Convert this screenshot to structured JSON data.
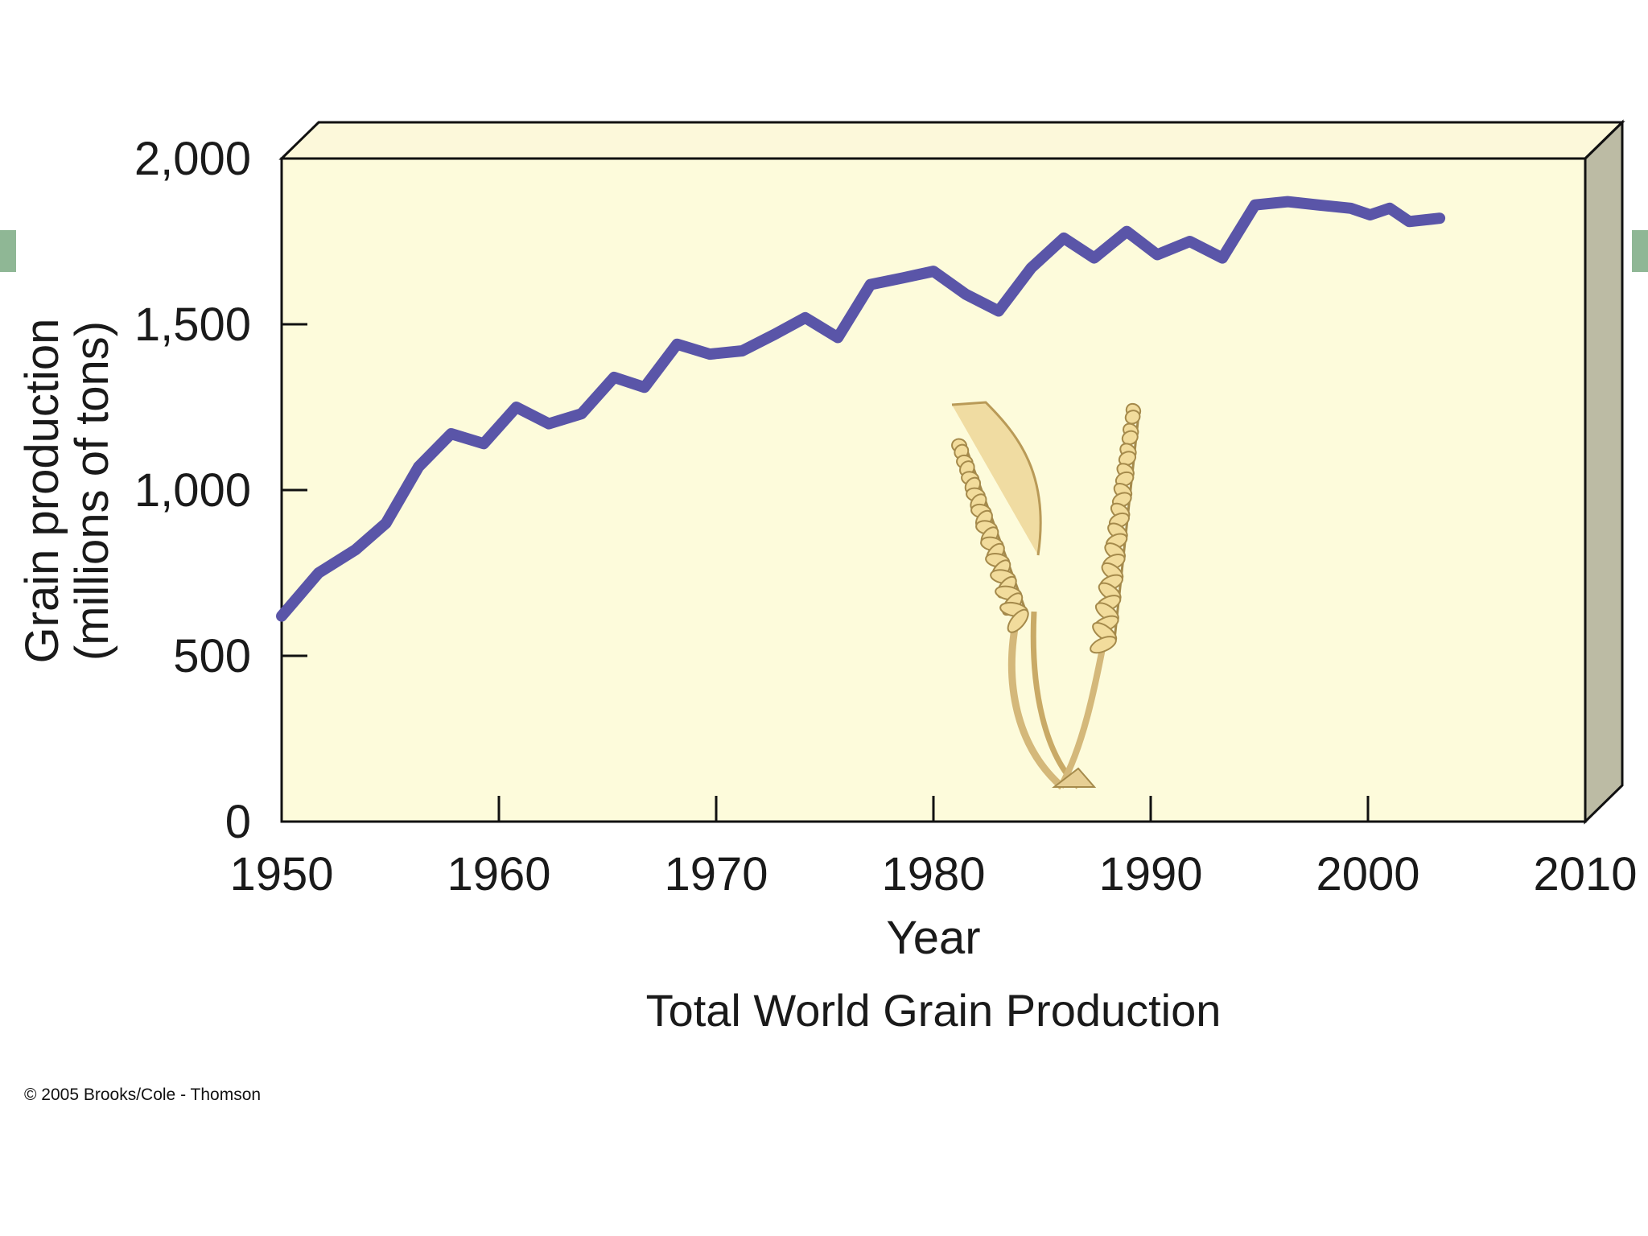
{
  "chart_data": {
    "type": "line",
    "title": "Total World Grain Production",
    "xlabel": "Year",
    "ylabel_line1": "Grain production",
    "ylabel_line2": "(millions of tons)",
    "xlim": [
      1950,
      2010
    ],
    "ylim": [
      0,
      2000
    ],
    "x_ticks": [
      1950,
      1960,
      1970,
      1980,
      1990,
      2000,
      2010
    ],
    "x_tick_labels": [
      "1950",
      "1960",
      "1970",
      "1980",
      "1990",
      "2000",
      "2010"
    ],
    "y_ticks": [
      0,
      500,
      1000,
      1500,
      2000
    ],
    "y_tick_labels": [
      "0",
      "500",
      "1,000",
      "1,500",
      "2,000"
    ],
    "grid": false,
    "series": [
      {
        "color": "#5a55a8",
        "x": [
          1950,
          1951.7,
          1953.4,
          1954.8,
          1956.3,
          1957.8,
          1959.3,
          1960.8,
          1962.3,
          1963.8,
          1965.3,
          1966.7,
          1968.2,
          1969.7,
          1971.2,
          1972.7,
          1974.1,
          1975.6,
          1977.1,
          1978.6,
          1980,
          1981.5,
          1983,
          1984.5,
          1986,
          1987.4,
          1988.9,
          1990.3,
          1991.8,
          1993.3,
          1994.8,
          1996.3,
          1997.7,
          1999.2,
          2000.1,
          2001,
          2001.9,
          2003.3
        ],
        "values": [
          620,
          750,
          820,
          900,
          1070,
          1170,
          1140,
          1250,
          1200,
          1230,
          1340,
          1310,
          1440,
          1410,
          1420,
          1470,
          1520,
          1460,
          1620,
          1640,
          1660,
          1590,
          1540,
          1670,
          1760,
          1700,
          1780,
          1710,
          1750,
          1700,
          1860,
          1870,
          1860,
          1850,
          1830,
          1850,
          1810,
          1820
        ]
      }
    ]
  },
  "illustration": "wheat-stalks-icon",
  "colors": {
    "plot_background": "#fdfbdb",
    "plot_top_face": "#fcf8da",
    "plot_side_face": "#bcbba4",
    "line": "#5a55a8"
  },
  "copyright": "© 2005 Brooks/Cole - Thomson"
}
